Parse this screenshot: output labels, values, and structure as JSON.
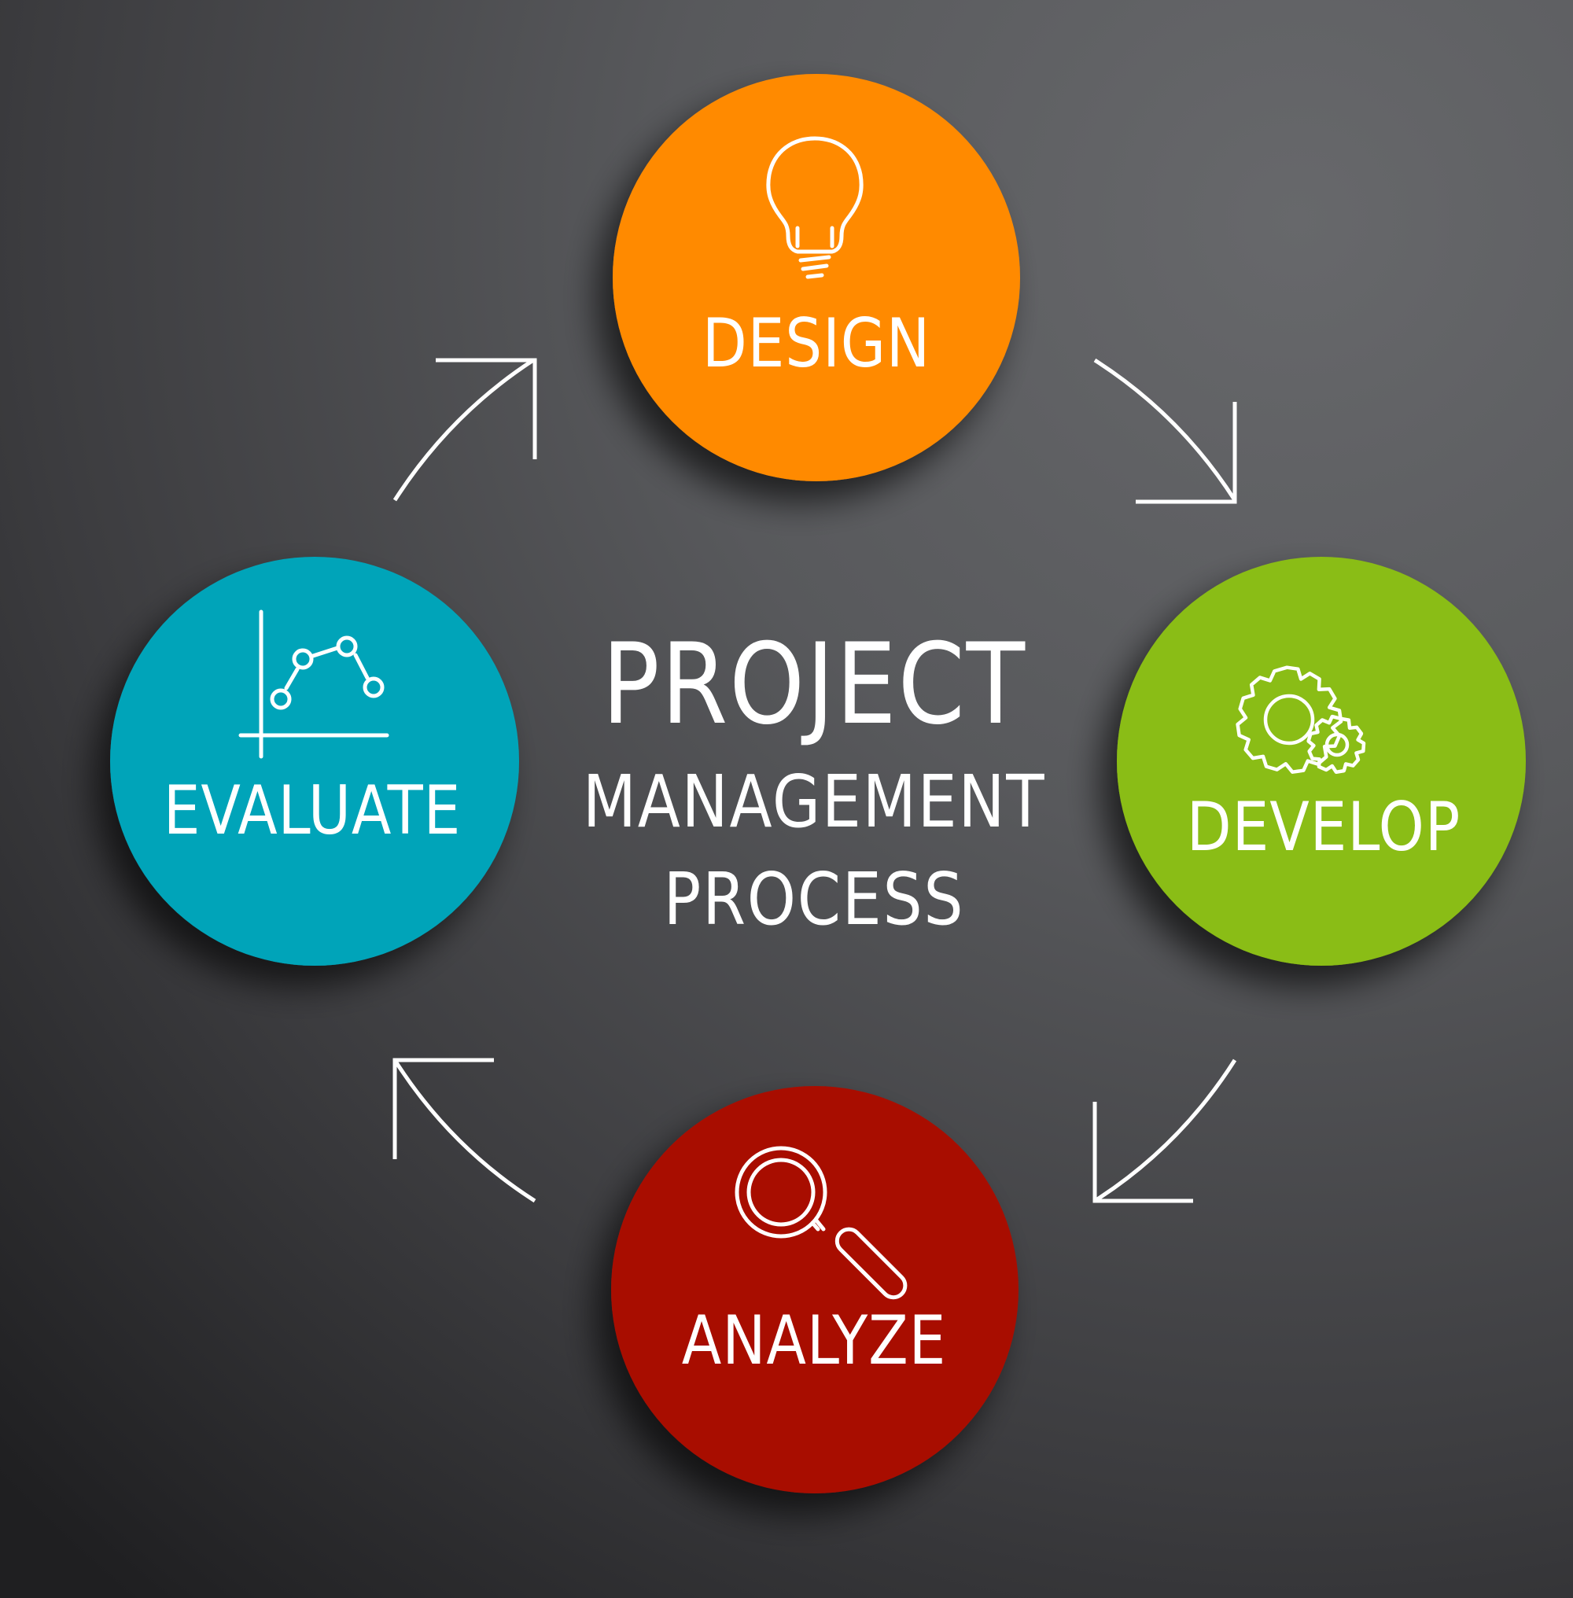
{
  "title": {
    "line1": "PROJECT",
    "line2": "MANAGEMENT",
    "line3": "PROCESS"
  },
  "steps": [
    {
      "label": "DESIGN",
      "icon": "lightbulb-icon",
      "color": "#ff8a00"
    },
    {
      "label": "DEVELOP",
      "icon": "gears-icon",
      "color": "#8abd12"
    },
    {
      "label": "ANALYZE",
      "icon": "magnifier-icon",
      "color": "#a80e00"
    },
    {
      "label": "EVALUATE",
      "icon": "line-chart-icon",
      "color": "#01a4b9"
    }
  ],
  "colors": {
    "background": "#58595c",
    "foreground": "#ffffff"
  }
}
